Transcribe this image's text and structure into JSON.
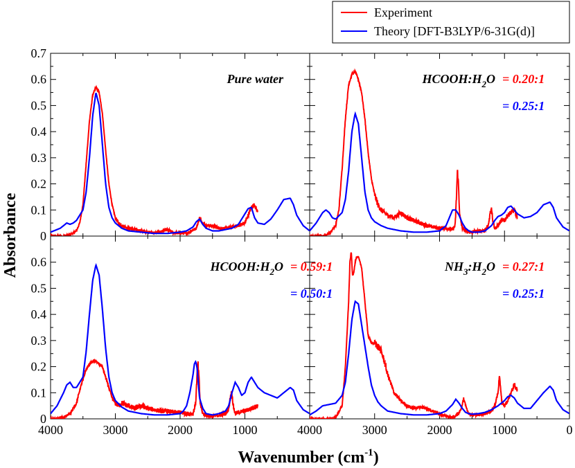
{
  "chart_data": {
    "type": "line",
    "layout": "2x2 panels",
    "xlabel": "Wavenumber (cm",
    "xlabel_sup": "-1",
    "xlabel_close": ")",
    "ylabel": "Absorbance",
    "xlim": [
      4000,
      0
    ],
    "xticks": [
      4000,
      3000,
      2000,
      1000
    ],
    "xticks_right": [
      4000,
      3000,
      2000,
      1000,
      0
    ],
    "ylim_top": [
      0,
      0.7
    ],
    "yticks_top": [
      "0",
      "0.1",
      "0.2",
      "0.3",
      "0.4",
      "0.5",
      "0.6",
      "0.7"
    ],
    "ylim_bottom": [
      0,
      0.7
    ],
    "yticks_bottom": [
      "0",
      "0.1",
      "0.2",
      "0.3",
      "0.4",
      "0.5",
      "0.6"
    ],
    "legend": {
      "location": "top-right",
      "entries": [
        {
          "label": "Experiment",
          "color": "#ff0000"
        },
        {
          "label": "Theory [DFT-B3LYP/6-31G(d)]",
          "color": "#0000ff"
        }
      ]
    },
    "colors": {
      "experiment": "#ff0000",
      "theory": "#0000ff"
    },
    "panels": [
      {
        "id": "top-left",
        "title": "Pure water",
        "annotations": [],
        "experiment": {
          "x": [
            4000,
            3800,
            3700,
            3600,
            3550,
            3500,
            3450,
            3400,
            3350,
            3300,
            3250,
            3200,
            3150,
            3100,
            3050,
            3000,
            2950,
            2900,
            2800,
            2600,
            2400,
            2250,
            2200,
            2100,
            1900,
            1750,
            1700,
            1650,
            1600,
            1500,
            1400,
            1300,
            1200,
            1100,
            1000,
            950,
            900,
            850,
            800
          ],
          "y": [
            0.0,
            0.0,
            0.005,
            0.02,
            0.05,
            0.12,
            0.28,
            0.44,
            0.54,
            0.57,
            0.55,
            0.47,
            0.33,
            0.2,
            0.12,
            0.07,
            0.05,
            0.04,
            0.03,
            0.02,
            0.012,
            0.02,
            0.025,
            0.012,
            0.01,
            0.03,
            0.07,
            0.05,
            0.04,
            0.04,
            0.03,
            0.03,
            0.035,
            0.04,
            0.05,
            0.08,
            0.11,
            0.12,
            0.09
          ],
          "noise": 0.008
        },
        "theory": {
          "x": [
            4000,
            3850,
            3750,
            3700,
            3650,
            3600,
            3500,
            3450,
            3400,
            3350,
            3300,
            3250,
            3200,
            3150,
            3100,
            3050,
            3000,
            2900,
            2800,
            2600,
            2400,
            2200,
            2000,
            1900,
            1800,
            1750,
            1700,
            1650,
            1600,
            1500,
            1400,
            1300,
            1200,
            1100,
            1000,
            950,
            900,
            850,
            800,
            700,
            600,
            500,
            400,
            300,
            250,
            200,
            100,
            0
          ],
          "y": [
            0.015,
            0.03,
            0.05,
            0.045,
            0.05,
            0.06,
            0.1,
            0.17,
            0.3,
            0.46,
            0.55,
            0.5,
            0.35,
            0.2,
            0.11,
            0.07,
            0.05,
            0.03,
            0.02,
            0.015,
            0.01,
            0.01,
            0.015,
            0.02,
            0.035,
            0.055,
            0.065,
            0.045,
            0.03,
            0.02,
            0.02,
            0.025,
            0.03,
            0.045,
            0.085,
            0.105,
            0.11,
            0.07,
            0.05,
            0.045,
            0.065,
            0.1,
            0.14,
            0.145,
            0.12,
            0.08,
            0.04,
            0.02
          ]
        }
      },
      {
        "id": "top-right",
        "title": "HCOOH:H",
        "title_sub": "2",
        "title_tail": "O",
        "annotations": [
          {
            "text": "= 0.20:1",
            "color": "#ff0000"
          },
          {
            "text": "= 0.25:1",
            "color": "#0000ff"
          }
        ],
        "experiment": {
          "x": [
            4000,
            3800,
            3700,
            3600,
            3550,
            3500,
            3450,
            3400,
            3350,
            3300,
            3250,
            3200,
            3150,
            3100,
            3050,
            3000,
            2950,
            2900,
            2800,
            2700,
            2600,
            2500,
            2400,
            2300,
            2200,
            2100,
            2000,
            1900,
            1800,
            1760,
            1740,
            1725,
            1710,
            1690,
            1650,
            1600,
            1500,
            1400,
            1300,
            1250,
            1220,
            1200,
            1180,
            1150,
            1100,
            1050,
            1000,
            950,
            900,
            850,
            800
          ],
          "y": [
            0.0,
            0.0,
            0.01,
            0.04,
            0.1,
            0.26,
            0.45,
            0.58,
            0.62,
            0.63,
            0.6,
            0.55,
            0.45,
            0.32,
            0.22,
            0.16,
            0.12,
            0.1,
            0.08,
            0.07,
            0.09,
            0.07,
            0.06,
            0.05,
            0.04,
            0.035,
            0.03,
            0.03,
            0.025,
            0.04,
            0.15,
            0.25,
            0.2,
            0.08,
            0.03,
            0.02,
            0.015,
            0.02,
            0.02,
            0.04,
            0.09,
            0.11,
            0.06,
            0.03,
            0.04,
            0.06,
            0.06,
            0.08,
            0.09,
            0.1,
            0.07
          ],
          "noise": 0.01
        },
        "theory": {
          "x": [
            4000,
            3900,
            3800,
            3750,
            3700,
            3650,
            3600,
            3500,
            3450,
            3400,
            3350,
            3300,
            3250,
            3200,
            3150,
            3100,
            3050,
            3000,
            2900,
            2800,
            2600,
            2400,
            2200,
            2000,
            1900,
            1850,
            1800,
            1750,
            1700,
            1650,
            1600,
            1550,
            1500,
            1400,
            1300,
            1200,
            1150,
            1100,
            1050,
            1000,
            950,
            900,
            850,
            800,
            700,
            600,
            500,
            400,
            300,
            250,
            200,
            100,
            0
          ],
          "y": [
            0.02,
            0.05,
            0.09,
            0.1,
            0.09,
            0.07,
            0.065,
            0.09,
            0.14,
            0.25,
            0.4,
            0.47,
            0.43,
            0.3,
            0.17,
            0.1,
            0.07,
            0.055,
            0.04,
            0.03,
            0.02,
            0.015,
            0.015,
            0.02,
            0.04,
            0.07,
            0.1,
            0.1,
            0.08,
            0.05,
            0.03,
            0.02,
            0.015,
            0.015,
            0.02,
            0.04,
            0.06,
            0.075,
            0.08,
            0.09,
            0.11,
            0.115,
            0.1,
            0.085,
            0.07,
            0.075,
            0.09,
            0.12,
            0.13,
            0.11,
            0.07,
            0.035,
            0.02
          ]
        }
      },
      {
        "id": "bottom-left",
        "title": "HCOOH:H",
        "title_sub": "2",
        "title_tail": "O",
        "annotations": [
          {
            "text": "= 0.59:1",
            "color": "#ff0000"
          },
          {
            "text": "= 0.50:1",
            "color": "#0000ff"
          }
        ],
        "experiment": {
          "x": [
            4000,
            3900,
            3800,
            3700,
            3600,
            3550,
            3500,
            3450,
            3400,
            3350,
            3300,
            3250,
            3200,
            3150,
            3100,
            3050,
            3000,
            2950,
            2900,
            2800,
            2700,
            2600,
            2500,
            2400,
            2300,
            2200,
            2100,
            2000,
            1900,
            1800,
            1760,
            1740,
            1725,
            1710,
            1690,
            1650,
            1600,
            1500,
            1400,
            1300,
            1250,
            1220,
            1200,
            1180,
            1150,
            1100,
            1000,
            900,
            800
          ],
          "y": [
            0.0,
            0.0,
            0.005,
            0.02,
            0.06,
            0.11,
            0.15,
            0.19,
            0.21,
            0.22,
            0.22,
            0.21,
            0.2,
            0.16,
            0.12,
            0.08,
            0.06,
            0.05,
            0.06,
            0.05,
            0.04,
            0.05,
            0.04,
            0.035,
            0.03,
            0.03,
            0.025,
            0.025,
            0.02,
            0.02,
            0.06,
            0.16,
            0.21,
            0.16,
            0.06,
            0.02,
            0.015,
            0.01,
            0.015,
            0.02,
            0.04,
            0.09,
            0.1,
            0.05,
            0.02,
            0.025,
            0.03,
            0.04,
            0.05
          ],
          "noise": 0.012
        },
        "theory": {
          "x": [
            4000,
            3900,
            3800,
            3750,
            3700,
            3650,
            3600,
            3500,
            3450,
            3400,
            3350,
            3300,
            3250,
            3200,
            3150,
            3100,
            3050,
            3000,
            2900,
            2800,
            2600,
            2400,
            2200,
            2000,
            1950,
            1900,
            1850,
            1800,
            1780,
            1760,
            1740,
            1720,
            1700,
            1650,
            1600,
            1500,
            1400,
            1300,
            1250,
            1200,
            1150,
            1100,
            1050,
            1000,
            950,
            900,
            850,
            800,
            700,
            600,
            500,
            400,
            300,
            250,
            200,
            100,
            0
          ],
          "y": [
            0.02,
            0.05,
            0.1,
            0.13,
            0.14,
            0.12,
            0.12,
            0.16,
            0.26,
            0.4,
            0.53,
            0.59,
            0.55,
            0.42,
            0.27,
            0.16,
            0.1,
            0.07,
            0.045,
            0.03,
            0.02,
            0.015,
            0.015,
            0.02,
            0.03,
            0.05,
            0.1,
            0.17,
            0.21,
            0.22,
            0.2,
            0.14,
            0.08,
            0.04,
            0.02,
            0.015,
            0.02,
            0.03,
            0.05,
            0.1,
            0.14,
            0.12,
            0.09,
            0.1,
            0.14,
            0.16,
            0.14,
            0.12,
            0.1,
            0.09,
            0.08,
            0.1,
            0.12,
            0.11,
            0.07,
            0.035,
            0.02
          ]
        }
      },
      {
        "id": "bottom-right",
        "title": "NH",
        "title_sub": "3",
        "title_tail": ":H",
        "title_sub2": "2",
        "title_tail2": "O",
        "annotations": [
          {
            "text": "= 0.27:1",
            "color": "#ff0000"
          },
          {
            "text": "= 0.25:1",
            "color": "#0000ff"
          }
        ],
        "experiment": {
          "x": [
            4000,
            3800,
            3700,
            3600,
            3500,
            3450,
            3400,
            3380,
            3360,
            3340,
            3320,
            3300,
            3280,
            3250,
            3200,
            3150,
            3100,
            3050,
            3000,
            2950,
            2900,
            2850,
            2800,
            2700,
            2600,
            2500,
            2400,
            2300,
            2200,
            2100,
            2000,
            1900,
            1800,
            1700,
            1650,
            1630,
            1600,
            1550,
            1500,
            1400,
            1300,
            1200,
            1150,
            1100,
            1080,
            1060,
            1040,
            1000,
            950,
            900,
            850,
            800
          ],
          "y": [
            0.0,
            0.0,
            0.0,
            0.005,
            0.05,
            0.2,
            0.45,
            0.6,
            0.64,
            0.55,
            0.56,
            0.6,
            0.62,
            0.62,
            0.58,
            0.45,
            0.32,
            0.29,
            0.29,
            0.28,
            0.26,
            0.22,
            0.17,
            0.1,
            0.07,
            0.05,
            0.04,
            0.045,
            0.04,
            0.03,
            0.02,
            0.01,
            0.005,
            0.02,
            0.05,
            0.08,
            0.05,
            0.02,
            0.015,
            0.015,
            0.02,
            0.03,
            0.05,
            0.1,
            0.16,
            0.12,
            0.06,
            0.05,
            0.07,
            0.1,
            0.13,
            0.11
          ],
          "noise": 0.008
        },
        "theory": {
          "x": [
            4000,
            3900,
            3800,
            3700,
            3600,
            3500,
            3450,
            3400,
            3350,
            3300,
            3250,
            3200,
            3150,
            3100,
            3050,
            3000,
            2950,
            2900,
            2800,
            2600,
            2400,
            2200,
            2000,
            1900,
            1800,
            1750,
            1700,
            1650,
            1600,
            1550,
            1500,
            1400,
            1300,
            1200,
            1100,
            1000,
            950,
            900,
            850,
            800,
            700,
            600,
            500,
            400,
            300,
            250,
            200,
            100,
            0
          ],
          "y": [
            0.015,
            0.03,
            0.05,
            0.055,
            0.06,
            0.09,
            0.14,
            0.25,
            0.38,
            0.45,
            0.44,
            0.36,
            0.28,
            0.2,
            0.13,
            0.09,
            0.065,
            0.05,
            0.03,
            0.02,
            0.015,
            0.015,
            0.02,
            0.03,
            0.055,
            0.075,
            0.06,
            0.04,
            0.025,
            0.02,
            0.018,
            0.02,
            0.025,
            0.035,
            0.05,
            0.07,
            0.085,
            0.09,
            0.08,
            0.06,
            0.04,
            0.04,
            0.07,
            0.1,
            0.125,
            0.11,
            0.07,
            0.035,
            0.02
          ]
        }
      }
    ]
  }
}
